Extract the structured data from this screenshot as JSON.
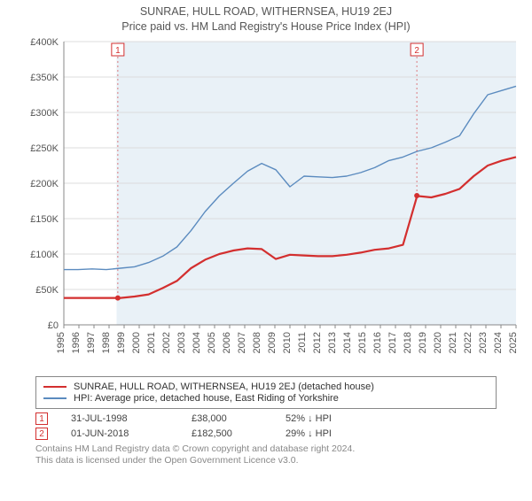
{
  "title": "SUNRAE, HULL ROAD, WITHERNSEA, HU19 2EJ",
  "subtitle": "Price paid vs. HM Land Registry's House Price Index (HPI)",
  "chart": {
    "type": "line",
    "background_color": "#ffffff",
    "plot_band_color": "#e9f1f7",
    "grid_color": "#dcdcdc",
    "axis_font_color": "#555555",
    "axis_font_size": 11,
    "ylim": [
      0,
      400000
    ],
    "ytick_step": 50000,
    "ytick_labels": [
      "£0",
      "£50K",
      "£100K",
      "£150K",
      "£200K",
      "£250K",
      "£300K",
      "£350K",
      "£400K"
    ],
    "xlim": [
      1995,
      2025
    ],
    "xtick_step": 1,
    "xtick_labels": [
      "1995",
      "1996",
      "1997",
      "1998",
      "1999",
      "2000",
      "2001",
      "2002",
      "2003",
      "2004",
      "2005",
      "2006",
      "2007",
      "2008",
      "2009",
      "2010",
      "2011",
      "2012",
      "2013",
      "2014",
      "2015",
      "2016",
      "2017",
      "2018",
      "2019",
      "2020",
      "2021",
      "2022",
      "2023",
      "2024",
      "2025"
    ],
    "series": [
      {
        "name": "property",
        "color": "#d32f2f",
        "line_width": 2.2,
        "y": [
          38,
          38,
          38,
          38,
          38,
          40,
          43,
          52,
          62,
          80,
          92,
          100,
          105,
          108,
          107,
          93,
          99,
          98,
          97,
          97,
          99,
          102,
          106,
          108,
          113,
          182,
          180,
          185,
          192,
          210,
          225,
          232,
          237
        ]
      },
      {
        "name": "hpi",
        "color": "#5b8bbf",
        "line_width": 1.4,
        "y": [
          78,
          78,
          79,
          78,
          80,
          82,
          88,
          97,
          110,
          133,
          160,
          182,
          200,
          217,
          228,
          219,
          195,
          210,
          209,
          208,
          210,
          215,
          222,
          232,
          237,
          245,
          250,
          258,
          267,
          298,
          325,
          331,
          337
        ]
      }
    ],
    "sale_markers": [
      {
        "n": "1",
        "x": 1998.58,
        "y": 38000,
        "color": "#d32f2f"
      },
      {
        "n": "2",
        "x": 2018.42,
        "y": 182500,
        "color": "#d32f2f"
      }
    ],
    "sale_dot_color": "#d32f2f"
  },
  "legend": {
    "items": [
      {
        "color": "#d32f2f",
        "width": 2.2,
        "label": "SUNRAE, HULL ROAD, WITHERNSEA, HU19 2EJ (detached house)"
      },
      {
        "color": "#5b8bbf",
        "width": 1.4,
        "label": "HPI: Average price, detached house, East Riding of Yorkshire"
      }
    ]
  },
  "marker_table": {
    "rows": [
      {
        "n": "1",
        "color": "#d32f2f",
        "date": "31-JUL-1998",
        "price": "£38,000",
        "delta": "52% ↓ HPI"
      },
      {
        "n": "2",
        "color": "#d32f2f",
        "date": "01-JUN-2018",
        "price": "£182,500",
        "delta": "29% ↓ HPI"
      }
    ]
  },
  "footer": {
    "line1": "Contains HM Land Registry data © Crown copyright and database right 2024.",
    "line2": "This data is licensed under the Open Government Licence v3.0."
  }
}
